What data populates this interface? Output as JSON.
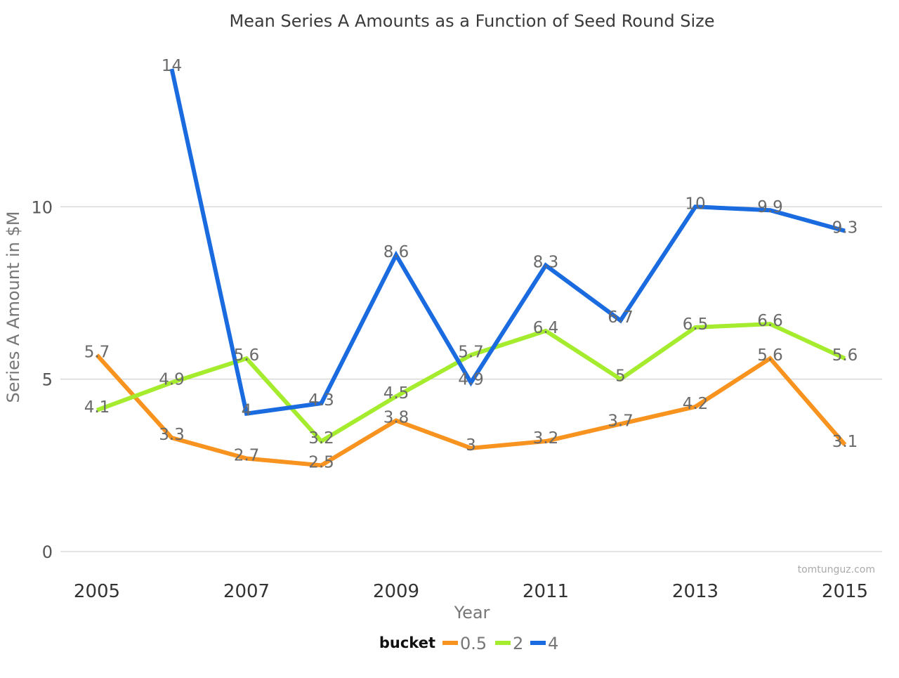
{
  "chart_data": {
    "type": "line",
    "title": "Mean Series A Amounts as a Function of Seed Round Size",
    "xlabel": "Year",
    "ylabel": "Series A Amount in $M",
    "x": [
      2005,
      2006,
      2007,
      2008,
      2009,
      2010,
      2011,
      2012,
      2013,
      2014,
      2015
    ],
    "x_ticks": [
      "2005",
      "2007",
      "2009",
      "2011",
      "2013",
      "2015"
    ],
    "y_ticks": [
      "0",
      "5",
      "10"
    ],
    "xlim": [
      2005,
      2015
    ],
    "ylim": [
      0,
      14
    ],
    "grid": "horizontal",
    "legend": {
      "title": "bucket",
      "placement": "bottom"
    },
    "watermark": "tomtunguz.com",
    "series": [
      {
        "name": "0.5",
        "color": "#f7931e",
        "values": [
          5.7,
          3.3,
          2.7,
          2.5,
          3.8,
          3,
          3.2,
          3.7,
          4.2,
          5.6,
          3.1
        ],
        "labels": [
          "5.7",
          "3.3",
          "2.7",
          "2.5",
          "3.8",
          "3",
          "3.2",
          "3.7",
          "4.2",
          "5.6",
          "3.1"
        ]
      },
      {
        "name": "2",
        "color": "#a6ec2e",
        "values": [
          4.1,
          4.9,
          5.6,
          3.2,
          4.5,
          5.7,
          6.4,
          5,
          6.5,
          6.6,
          5.6
        ],
        "labels": [
          "4.1",
          "4.9",
          "5.6",
          "3.2",
          "4.5",
          "5.7",
          "6.4",
          "5",
          "6.5",
          "6.6",
          "5.6"
        ]
      },
      {
        "name": "4",
        "color": "#1a6be0",
        "values": [
          null,
          14,
          4,
          4.3,
          8.6,
          4.9,
          8.3,
          6.7,
          10,
          9.9,
          9.3
        ],
        "labels": [
          null,
          "14",
          "4",
          "4.3",
          "8.6",
          "4.9",
          "8.3",
          "6.7",
          "10",
          "9.9",
          "9.3"
        ]
      }
    ]
  }
}
